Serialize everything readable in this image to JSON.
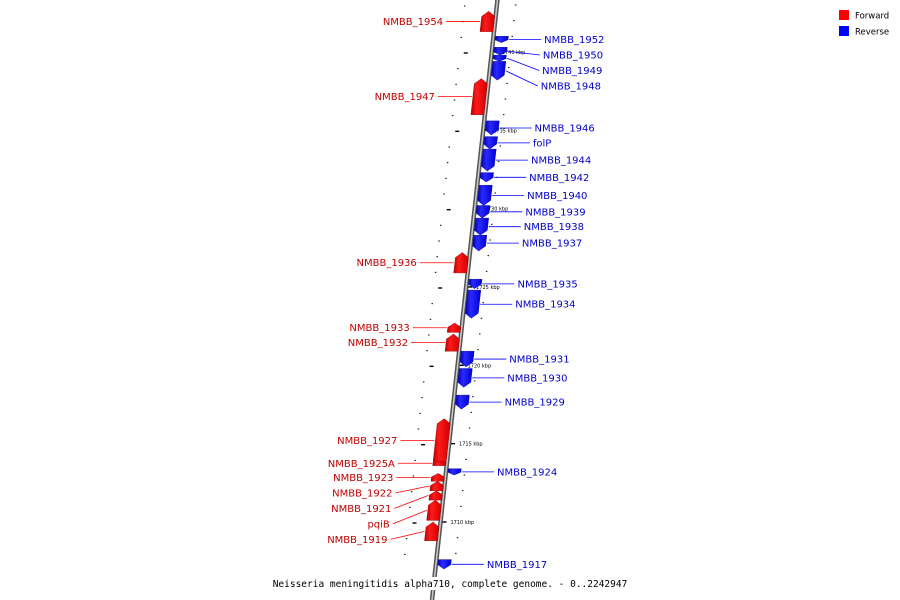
{
  "legend": {
    "forward_label": "Forward",
    "reverse_label": "Reverse",
    "forward_color": "#ff0000",
    "reverse_color": "#0000ff"
  },
  "caption": "Neisseria meningitidis alpha710, complete genome. - 0..2242947",
  "track": {
    "start_kbp": 1708.6,
    "end_kbp": 1743.1,
    "tick_kbp": [
      1710,
      1715,
      1720,
      1725,
      1730,
      1735,
      1740
    ],
    "tick_unit": "kbp"
  },
  "genes": [
    {
      "name": "NMBB_1954",
      "strand": "forward",
      "start_kbp": 1741.3,
      "end_kbp": 1742.6
    },
    {
      "name": "NMBB_1952",
      "strand": "reverse",
      "start_kbp": 1740.6,
      "end_kbp": 1741.0
    },
    {
      "name": "NMBB_1950",
      "strand": "reverse",
      "start_kbp": 1739.8,
      "end_kbp": 1740.3
    },
    {
      "name": "NMBB_1949",
      "strand": "reverse",
      "start_kbp": 1739.4,
      "end_kbp": 1739.8
    },
    {
      "name": "NMBB_1948",
      "strand": "reverse",
      "start_kbp": 1738.2,
      "end_kbp": 1739.4
    },
    {
      "name": "NMBB_1947",
      "strand": "forward",
      "start_kbp": 1736.0,
      "end_kbp": 1738.3
    },
    {
      "name": "NMBB_1946",
      "strand": "reverse",
      "start_kbp": 1734.7,
      "end_kbp": 1735.6
    },
    {
      "name": "folP",
      "strand": "reverse",
      "start_kbp": 1733.8,
      "end_kbp": 1734.6
    },
    {
      "name": "NMBB_1944",
      "strand": "reverse",
      "start_kbp": 1732.4,
      "end_kbp": 1733.8
    },
    {
      "name": "NMBB_1942",
      "strand": "reverse",
      "start_kbp": 1731.7,
      "end_kbp": 1732.3
    },
    {
      "name": "NMBB_1940",
      "strand": "reverse",
      "start_kbp": 1730.2,
      "end_kbp": 1731.5
    },
    {
      "name": "NMBB_1939",
      "strand": "reverse",
      "start_kbp": 1729.4,
      "end_kbp": 1730.2
    },
    {
      "name": "NMBB_1938",
      "strand": "reverse",
      "start_kbp": 1728.3,
      "end_kbp": 1729.4
    },
    {
      "name": "NMBB_1937",
      "strand": "reverse",
      "start_kbp": 1727.3,
      "end_kbp": 1728.3
    },
    {
      "name": "NMBB_1936",
      "strand": "forward",
      "start_kbp": 1725.9,
      "end_kbp": 1727.2
    },
    {
      "name": "NMBB_1935",
      "strand": "reverse",
      "start_kbp": 1724.9,
      "end_kbp": 1725.5
    },
    {
      "name": "NMBB_1934",
      "strand": "reverse",
      "start_kbp": 1723.0,
      "end_kbp": 1724.8
    },
    {
      "name": "NMBB_1933",
      "strand": "forward",
      "start_kbp": 1722.1,
      "end_kbp": 1722.7
    },
    {
      "name": "NMBB_1932",
      "strand": "forward",
      "start_kbp": 1720.9,
      "end_kbp": 1722.0
    },
    {
      "name": "NMBB_1931",
      "strand": "reverse",
      "start_kbp": 1719.9,
      "end_kbp": 1720.9
    },
    {
      "name": "NMBB_1930",
      "strand": "reverse",
      "start_kbp": 1718.6,
      "end_kbp": 1719.8
    },
    {
      "name": "NMBB_1929",
      "strand": "reverse",
      "start_kbp": 1717.2,
      "end_kbp": 1718.1
    },
    {
      "name": "NMBB_1927",
      "strand": "forward",
      "start_kbp": 1713.8,
      "end_kbp": 1716.6
    },
    {
      "name": "NMBB_1925A",
      "strand": "forward",
      "start_kbp": 1713.6,
      "end_kbp": 1713.9
    },
    {
      "name": "NMBB_1924",
      "strand": "reverse",
      "start_kbp": 1713.0,
      "end_kbp": 1713.4
    },
    {
      "name": "NMBB_1923",
      "strand": "forward",
      "start_kbp": 1712.6,
      "end_kbp": 1713.1
    },
    {
      "name": "NMBB_1922",
      "strand": "forward",
      "start_kbp": 1712.0,
      "end_kbp": 1712.6
    },
    {
      "name": "NMBB_1921",
      "strand": "forward",
      "start_kbp": 1711.4,
      "end_kbp": 1712.0
    },
    {
      "name": "pqiB",
      "strand": "forward",
      "start_kbp": 1710.1,
      "end_kbp": 1711.4
    },
    {
      "name": "NMBB_1919",
      "strand": "forward",
      "start_kbp": 1708.8,
      "end_kbp": 1710.0
    },
    {
      "name": "NMBB_1917",
      "strand": "reverse",
      "start_kbp": 1707.0,
      "end_kbp": 1707.6
    }
  ]
}
